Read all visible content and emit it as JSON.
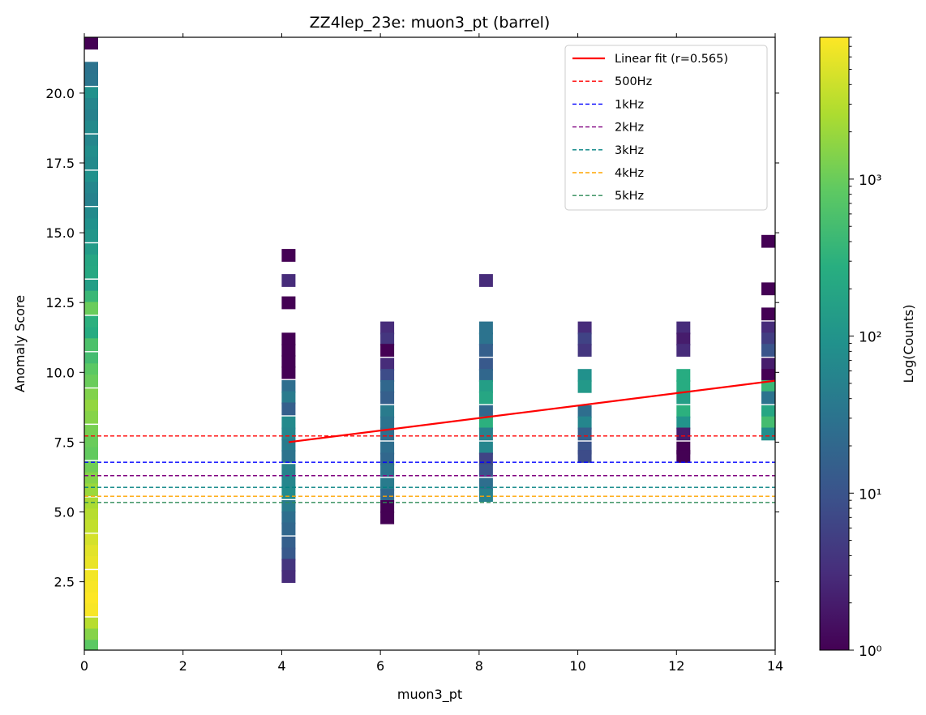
{
  "chart_data": {
    "type": "heatmap",
    "title": "ZZ4lep_23e: muon3_pt (barrel)",
    "xlabel": "muon3_pt",
    "ylabel": "Anomaly Score",
    "xlim": [
      0,
      14
    ],
    "ylim": [
      0.05,
      22.0
    ],
    "x_ticks": [
      0,
      2,
      4,
      6,
      8,
      10,
      12,
      14
    ],
    "x_tick_labels": [
      "0",
      "2",
      "4",
      "6",
      "8",
      "10",
      "12",
      "14"
    ],
    "y_ticks": [
      2.5,
      5.0,
      7.5,
      10.0,
      12.5,
      15.0,
      17.5,
      20.0
    ],
    "y_tick_labels": [
      "2.5",
      "5.0",
      "7.5",
      "10.0",
      "12.5",
      "15.0",
      "17.5",
      "20.0"
    ],
    "grid": false,
    "legend_position": "top-right",
    "colorbar": {
      "label": "Log(Counts)",
      "scale": "log",
      "range": [
        1,
        8000
      ],
      "colormap": "viridis",
      "major_ticks": [
        1,
        10,
        100,
        1000
      ],
      "major_tick_labels": [
        "10⁰",
        "10¹",
        "10²",
        "10³"
      ]
    },
    "bin_width": 0.28,
    "bin_height": 0.44,
    "columns": [
      {
        "x": 0.14,
        "cells": [
          [
            21.8,
            1
          ],
          [
            20.9,
            30
          ],
          [
            20.5,
            32
          ],
          [
            20.0,
            90
          ],
          [
            19.6,
            60
          ],
          [
            19.2,
            50
          ],
          [
            18.8,
            70
          ],
          [
            18.3,
            60
          ],
          [
            17.9,
            80
          ],
          [
            17.5,
            70
          ],
          [
            17.0,
            90
          ],
          [
            16.6,
            60
          ],
          [
            16.2,
            50
          ],
          [
            15.7,
            70
          ],
          [
            15.3,
            90
          ],
          [
            14.9,
            110
          ],
          [
            14.4,
            130
          ],
          [
            14.0,
            200
          ],
          [
            13.6,
            220
          ],
          [
            13.1,
            150
          ],
          [
            12.7,
            400
          ],
          [
            12.3,
            1000
          ],
          [
            11.8,
            300
          ],
          [
            11.4,
            250
          ],
          [
            11.0,
            600
          ],
          [
            10.5,
            500
          ],
          [
            10.1,
            800
          ],
          [
            9.7,
            1000
          ],
          [
            9.2,
            1400
          ],
          [
            8.8,
            1800
          ],
          [
            8.4,
            1500
          ],
          [
            7.9,
            1200
          ],
          [
            7.5,
            1000
          ],
          [
            7.1,
            900
          ],
          [
            6.6,
            1100
          ],
          [
            6.2,
            1500
          ],
          [
            5.8,
            2000
          ],
          [
            5.3,
            2500
          ],
          [
            4.9,
            3000
          ],
          [
            4.5,
            3500
          ],
          [
            4.0,
            4500
          ],
          [
            3.6,
            5500
          ],
          [
            3.2,
            6000
          ],
          [
            2.7,
            7000
          ],
          [
            2.3,
            7500
          ],
          [
            1.9,
            8000
          ],
          [
            1.5,
            7500
          ],
          [
            1.0,
            3000
          ],
          [
            0.6,
            1500
          ],
          [
            0.2,
            800
          ]
        ]
      },
      {
        "x": 4.14,
        "cells": [
          [
            14.2,
            1
          ],
          [
            13.3,
            3
          ],
          [
            12.5,
            1
          ],
          [
            11.2,
            1
          ],
          [
            10.8,
            1
          ],
          [
            10.4,
            1
          ],
          [
            10.0,
            1
          ],
          [
            9.5,
            25
          ],
          [
            9.1,
            40
          ],
          [
            8.7,
            15
          ],
          [
            8.2,
            70
          ],
          [
            7.8,
            60
          ],
          [
            7.4,
            40
          ],
          [
            7.0,
            30
          ],
          [
            6.5,
            50
          ],
          [
            6.1,
            60
          ],
          [
            5.7,
            70
          ],
          [
            5.2,
            40
          ],
          [
            4.8,
            25
          ],
          [
            4.4,
            20
          ],
          [
            3.9,
            15
          ],
          [
            3.5,
            12
          ],
          [
            3.1,
            4
          ],
          [
            2.7,
            3
          ]
        ]
      },
      {
        "x": 6.14,
        "cells": [
          [
            11.6,
            3
          ],
          [
            11.2,
            4
          ],
          [
            10.8,
            1
          ],
          [
            10.3,
            3
          ],
          [
            9.9,
            8
          ],
          [
            9.5,
            20
          ],
          [
            9.1,
            15
          ],
          [
            8.6,
            40
          ],
          [
            8.2,
            30
          ],
          [
            7.8,
            25
          ],
          [
            7.3,
            25
          ],
          [
            6.9,
            20
          ],
          [
            6.5,
            30
          ],
          [
            6.0,
            40
          ],
          [
            5.6,
            20
          ],
          [
            5.2,
            1
          ],
          [
            4.8,
            1
          ]
        ]
      },
      {
        "x": 8.14,
        "cells": [
          [
            13.3,
            3
          ],
          [
            11.6,
            30
          ],
          [
            11.2,
            30
          ],
          [
            10.8,
            15
          ],
          [
            10.3,
            12
          ],
          [
            9.9,
            20
          ],
          [
            9.5,
            150
          ],
          [
            9.1,
            200
          ],
          [
            8.6,
            20
          ],
          [
            8.2,
            300
          ],
          [
            7.8,
            50
          ],
          [
            7.3,
            60
          ],
          [
            6.9,
            6
          ],
          [
            6.5,
            10
          ],
          [
            6.0,
            25
          ],
          [
            5.6,
            50
          ]
        ]
      },
      {
        "x": 10.14,
        "cells": [
          [
            11.6,
            3
          ],
          [
            11.2,
            6
          ],
          [
            10.8,
            4
          ],
          [
            9.9,
            90
          ],
          [
            9.5,
            120
          ],
          [
            8.6,
            25
          ],
          [
            8.2,
            60
          ],
          [
            7.8,
            15
          ],
          [
            7.3,
            10
          ],
          [
            7.0,
            8
          ]
        ]
      },
      {
        "x": 12.14,
        "cells": [
          [
            11.6,
            3
          ],
          [
            11.2,
            2
          ],
          [
            10.8,
            3
          ],
          [
            9.9,
            250
          ],
          [
            9.5,
            250
          ],
          [
            9.1,
            150
          ],
          [
            8.6,
            300
          ],
          [
            8.2,
            100
          ],
          [
            7.8,
            2
          ],
          [
            7.3,
            1
          ],
          [
            7.0,
            1
          ]
        ]
      },
      {
        "x": 13.86,
        "cells": [
          [
            14.7,
            1
          ],
          [
            13.0,
            1
          ],
          [
            12.1,
            1
          ],
          [
            11.6,
            3
          ],
          [
            11.2,
            5
          ],
          [
            10.8,
            10
          ],
          [
            10.3,
            2
          ],
          [
            9.9,
            1
          ],
          [
            9.5,
            400
          ],
          [
            9.1,
            30
          ],
          [
            8.6,
            200
          ],
          [
            8.2,
            500
          ],
          [
            7.8,
            80
          ]
        ]
      }
    ],
    "series": [
      {
        "name": "Linear fit (r=0.565)",
        "kind": "line",
        "color": "#ff0000",
        "style": "solid",
        "x": [
          4.14,
          14.0
        ],
        "y": [
          7.5,
          9.7
        ]
      },
      {
        "name": "500Hz",
        "kind": "hline",
        "color": "#ff0000",
        "style": "dashed",
        "y": 7.72
      },
      {
        "name": "1kHz",
        "kind": "hline",
        "color": "#0000ff",
        "style": "dashed",
        "y": 6.78
      },
      {
        "name": "2kHz",
        "kind": "hline",
        "color": "#800080",
        "style": "dashed",
        "y": 6.3
      },
      {
        "name": "3kHz",
        "kind": "hline",
        "color": "#008080",
        "style": "dashed",
        "y": 5.88
      },
      {
        "name": "4kHz",
        "kind": "hline",
        "color": "#ffa500",
        "style": "dashed",
        "y": 5.56
      },
      {
        "name": "5kHz",
        "kind": "hline",
        "color": "#2e8b57",
        "style": "dashed",
        "y": 5.34
      }
    ]
  }
}
